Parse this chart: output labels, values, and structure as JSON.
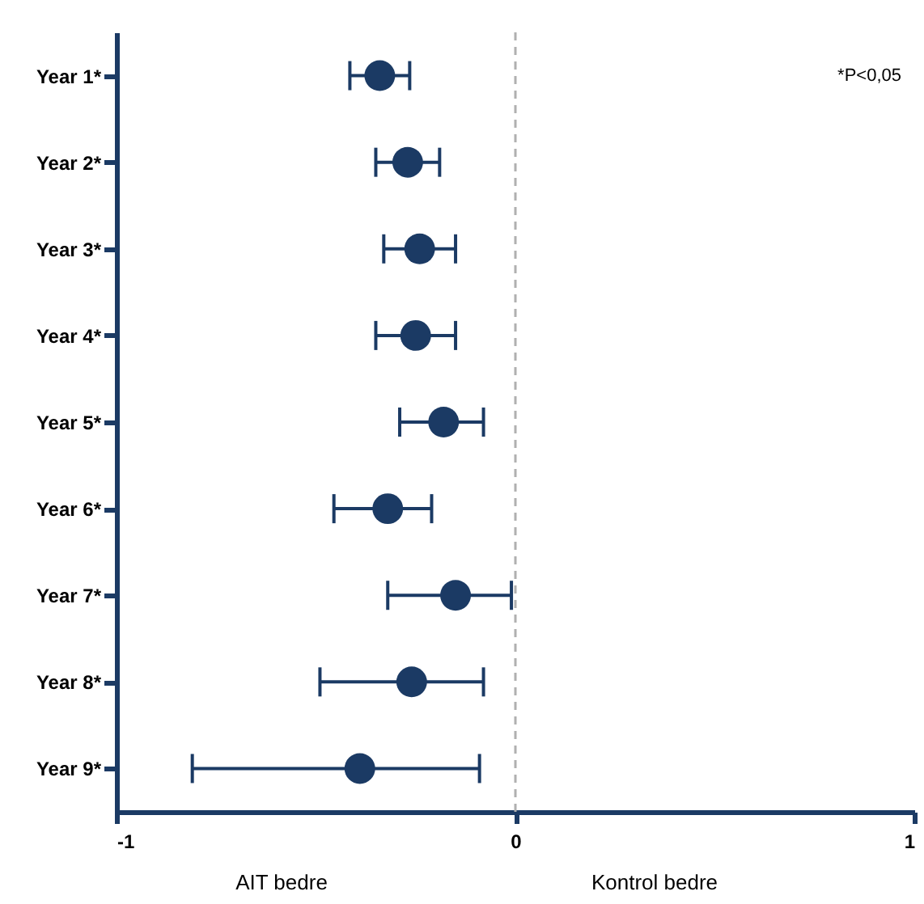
{
  "chart_data": {
    "type": "scatter",
    "orientation": "horizontal",
    "categories": [
      "Year 1*",
      "Year 2*",
      "Year 3*",
      "Year 4*",
      "Year 5*",
      "Year 6*",
      "Year 7*",
      "Year 8*",
      "Year 9*"
    ],
    "values": [
      -0.34,
      -0.27,
      -0.24,
      -0.25,
      -0.18,
      -0.32,
      -0.15,
      -0.26,
      -0.39
    ],
    "errors": [
      [
        -0.415,
        -0.265
      ],
      [
        -0.35,
        -0.19
      ],
      [
        -0.33,
        -0.15
      ],
      [
        -0.35,
        -0.15
      ],
      [
        -0.29,
        -0.08
      ],
      [
        -0.455,
        -0.21
      ],
      [
        -0.32,
        -0.01
      ],
      [
        -0.49,
        -0.08
      ],
      [
        -0.81,
        -0.09
      ]
    ],
    "color": "#1b3a64",
    "marker": "circle",
    "xlim": [
      -1,
      1
    ],
    "xticks": [
      -1,
      0,
      1
    ],
    "grid": false,
    "ref_lines": [
      {
        "axis": "x",
        "value": 0,
        "color": "#b0b0b0",
        "line_style": "dashed"
      }
    ],
    "annotations": [
      "*P<0,05",
      "AIT bedre",
      "Kontrol bedre"
    ]
  }
}
